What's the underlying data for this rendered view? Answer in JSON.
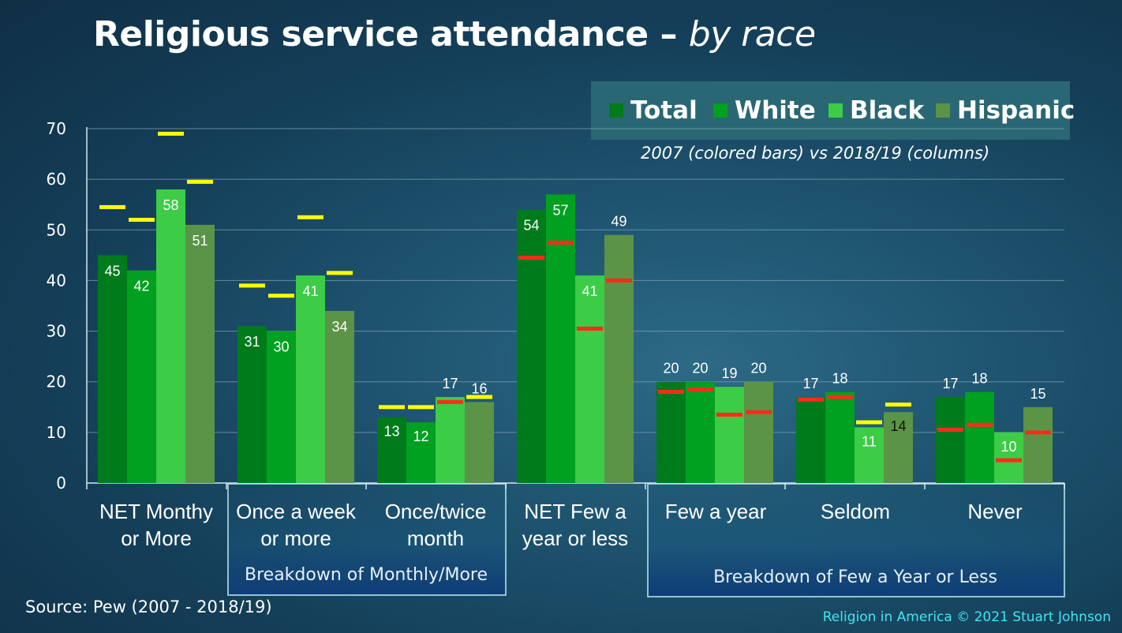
{
  "title": {
    "main": "Religious service attendance",
    "dash": " – ",
    "sub": "by race"
  },
  "subtitle_note": "2007 (colored bars) vs 2018/19 (columns)",
  "source": "Source: Pew (2007 - 2018/19)",
  "copyright": "Religion in America © 2021 Stuart Johnson",
  "colors": {
    "Total": "#007b1c",
    "White": "#00a020",
    "Black": "#3ccc46",
    "Hispanic": "#5b9446",
    "marker_above": "#ffff00",
    "marker_below": "#ff2b1a"
  },
  "legend": [
    {
      "label": "Total",
      "color": "#007b1c"
    },
    {
      "label": "White",
      "color": "#00a020"
    },
    {
      "label": "Black",
      "color": "#3ccc46"
    },
    {
      "label": "Hispanic",
      "color": "#5b9446"
    }
  ],
  "categories": [
    "NET Monthy or More",
    "Once a week or more",
    "Once/twice month",
    "NET Few a year or less",
    "Few a year",
    "Seldom",
    "Never"
  ],
  "brackets": [
    "Breakdown of Monthly/More",
    "Breakdown of Few a Year or Less"
  ],
  "chart_data": {
    "type": "bar",
    "title": "Religious service attendance – by race",
    "ylim": [
      0,
      70
    ],
    "yticks": [
      "0",
      "10",
      "20",
      "30",
      "40",
      "50",
      "60",
      "70"
    ],
    "grid": true,
    "legend_position": "top-right",
    "categories": [
      "NET Monthy or More",
      "Once a week or more",
      "Once/twice month",
      "NET Few a year or less",
      "Few a year",
      "Seldom",
      "Never"
    ],
    "series": [
      {
        "name": "Total",
        "values": [
          45,
          31,
          13,
          54,
          20,
          17,
          17
        ],
        "values_2007": [
          54.5,
          39,
          15,
          44.5,
          18,
          16.5,
          10.5
        ]
      },
      {
        "name": "White",
        "values": [
          42,
          30,
          12,
          57,
          20,
          18,
          18
        ],
        "values_2007": [
          52,
          37,
          15,
          47.5,
          18.5,
          17,
          11.5
        ]
      },
      {
        "name": "Black",
        "values": [
          58,
          41,
          17,
          41,
          19,
          11,
          10
        ],
        "values_2007": [
          69,
          52.5,
          16,
          30.5,
          13.5,
          12,
          4.5
        ]
      },
      {
        "name": "Hispanic",
        "values": [
          51,
          34,
          16,
          49,
          20,
          14,
          15
        ],
        "values_2007": [
          59.5,
          41.5,
          17,
          40,
          14,
          15.5,
          10
        ]
      }
    ]
  }
}
